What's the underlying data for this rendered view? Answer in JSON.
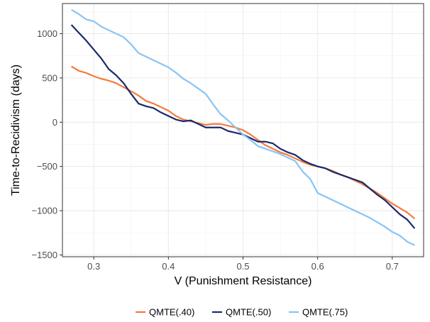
{
  "chart_data": {
    "type": "line",
    "xlabel": "V (Punishment Resistance)",
    "ylabel": "Time-to-Recidivism (days)",
    "xlim": [
      0.258,
      0.742
    ],
    "ylim": [
      -1520,
      1340
    ],
    "x_ticks": [
      0.3,
      0.4,
      0.5,
      0.6,
      0.7
    ],
    "x_tick_labels": [
      "0.3",
      "0.4",
      "0.5",
      "0.6",
      "0.7"
    ],
    "y_ticks": [
      -1500,
      -1000,
      -500,
      0,
      500,
      1000
    ],
    "y_tick_labels": [
      "−1500",
      "−1000",
      "−500",
      "0",
      "500",
      "1000"
    ],
    "grid": true,
    "legend_position": "bottom",
    "x": [
      0.27,
      0.28,
      0.29,
      0.3,
      0.31,
      0.32,
      0.33,
      0.34,
      0.35,
      0.36,
      0.37,
      0.38,
      0.39,
      0.4,
      0.41,
      0.42,
      0.43,
      0.44,
      0.45,
      0.46,
      0.47,
      0.48,
      0.49,
      0.5,
      0.51,
      0.52,
      0.53,
      0.54,
      0.55,
      0.56,
      0.57,
      0.58,
      0.59,
      0.6,
      0.61,
      0.62,
      0.63,
      0.64,
      0.65,
      0.66,
      0.67,
      0.68,
      0.69,
      0.7,
      0.71,
      0.72,
      0.73
    ],
    "series": [
      {
        "name": "QMTE(.40)",
        "color": "#f47b3b",
        "values": [
          630,
          580,
          555,
          520,
          490,
          470,
          440,
          395,
          350,
          300,
          240,
          210,
          170,
          130,
          70,
          30,
          10,
          -10,
          -30,
          -20,
          -20,
          -40,
          -60,
          -90,
          -140,
          -200,
          -260,
          -300,
          -340,
          -370,
          -410,
          -450,
          -480,
          -500,
          -520,
          -550,
          -590,
          -620,
          -660,
          -700,
          -750,
          -800,
          -860,
          -920,
          -970,
          -1020,
          -1090
        ]
      },
      {
        "name": "QMTE(.50)",
        "color": "#1a2a6c",
        "values": [
          1100,
          1010,
          920,
          820,
          720,
          600,
          530,
          440,
          320,
          210,
          180,
          160,
          110,
          70,
          30,
          10,
          20,
          -20,
          -60,
          -60,
          -60,
          -100,
          -120,
          -140,
          -180,
          -220,
          -220,
          -240,
          -300,
          -340,
          -370,
          -430,
          -470,
          -500,
          -520,
          -560,
          -590,
          -620,
          -650,
          -680,
          -750,
          -820,
          -880,
          -960,
          -1040,
          -1100,
          -1200
        ]
      },
      {
        "name": "QMTE(.75)",
        "color": "#89c4f4",
        "values": [
          1270,
          1220,
          1160,
          1140,
          1080,
          1040,
          1000,
          960,
          880,
          780,
          740,
          700,
          660,
          620,
          560,
          490,
          440,
          380,
          320,
          200,
          90,
          20,
          -60,
          -140,
          -200,
          -270,
          -300,
          -330,
          -360,
          -400,
          -440,
          -560,
          -640,
          -800,
          -840,
          -880,
          -920,
          -960,
          -1000,
          -1040,
          -1080,
          -1130,
          -1180,
          -1240,
          -1280,
          -1350,
          -1390
        ]
      }
    ]
  }
}
